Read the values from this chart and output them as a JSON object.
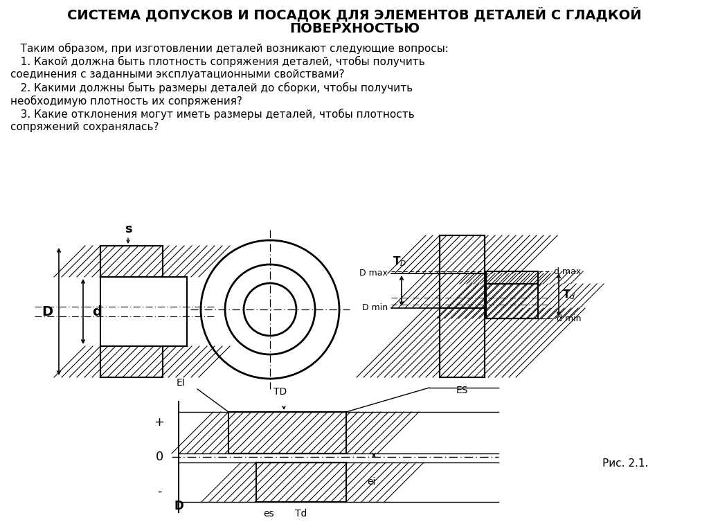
{
  "title_line1": "СИСТЕМА ДОПУСКОВ И ПОСАДОК ДЛЯ ЭЛЕМЕНТОВ ДЕТАЛЕЙ С ГЛАДКОЙ",
  "title_line2": "ПОВЕРХНОСТЬЮ",
  "text_lines": [
    "   Таким образом, при изготовлении деталей возникают следующие вопросы:",
    "   1. Какой должна быть плотность сопряжения деталей, чтобы получить",
    "соединения с заданными эксплуатационными свойствами?",
    "   2. Какими должны быть размеры деталей до сборки, чтобы получить",
    "необходимую плотность их сопряжения?",
    "   3. Какие отклонения могут иметь размеры деталей, чтобы плотность",
    "сопряжений сохранялась?"
  ],
  "fig_caption": "Рис. 2.1.",
  "bg_color": "#ffffff",
  "lc": "#000000",
  "tc": "#000000"
}
